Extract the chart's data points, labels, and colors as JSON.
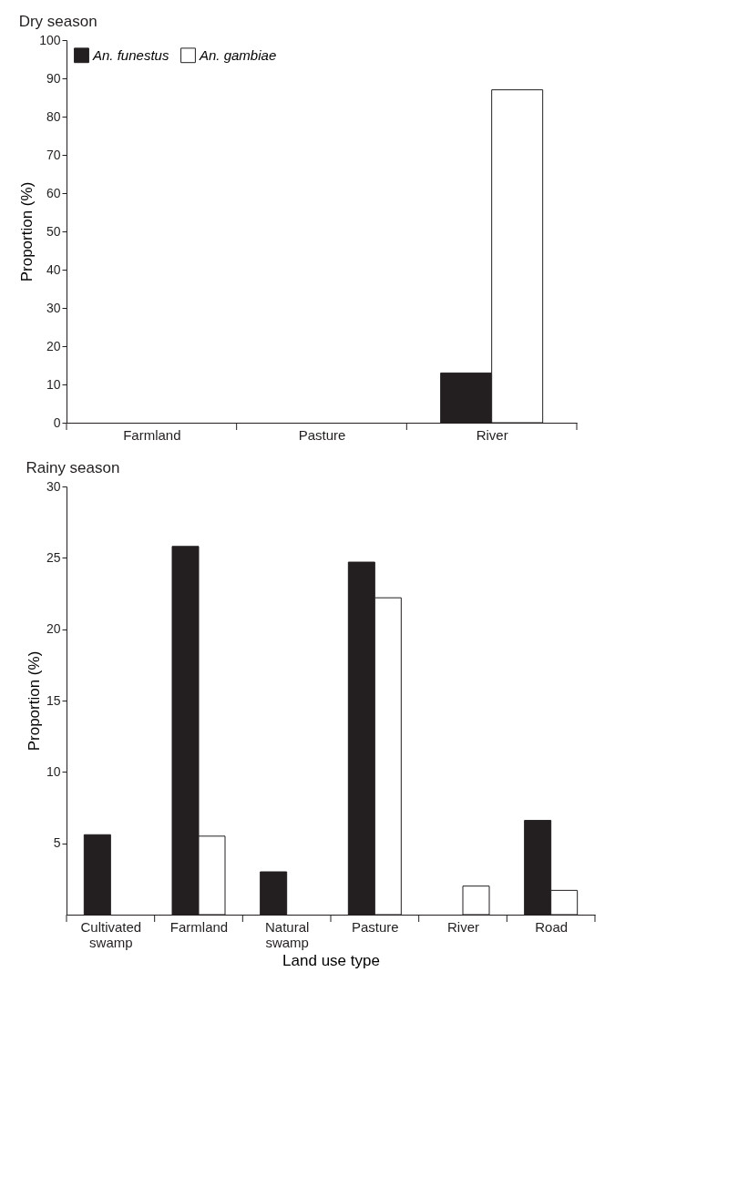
{
  "chart_data": [
    {
      "type": "bar",
      "title": "Dry season",
      "ylabel": "Proportion (%)",
      "categories": [
        "Farmland",
        "Pasture",
        "River"
      ],
      "series": [
        {
          "name": "An. funestus",
          "color": "#231f20",
          "values": [
            0,
            0,
            13
          ]
        },
        {
          "name": "An. gambiae",
          "color": "#ffffff",
          "values": [
            0,
            0,
            87
          ]
        }
      ],
      "ylim": [
        0,
        100
      ],
      "yticks": [
        0,
        10,
        20,
        30,
        40,
        50,
        60,
        70,
        80,
        90,
        100
      ],
      "legend": "top left",
      "grid": false
    },
    {
      "type": "bar",
      "title": "Rainy season",
      "ylabel": "Proportion (%)",
      "xlabel": "Land use type",
      "categories": [
        "Cultivated swamp",
        "Farmland",
        "Natural swamp",
        "Pasture",
        "River",
        "Road"
      ],
      "series": [
        {
          "color": "#231f20",
          "values": [
            5.6,
            25.8,
            3.0,
            24.7,
            0,
            6.6
          ]
        },
        {
          "color": "#ffffff",
          "values": [
            0,
            5.5,
            0,
            22.2,
            2.0,
            1.7
          ]
        }
      ],
      "ylim": [
        0,
        30
      ],
      "yticks": [
        5,
        10,
        15,
        20,
        25,
        30
      ],
      "legend": false,
      "grid": false
    }
  ]
}
